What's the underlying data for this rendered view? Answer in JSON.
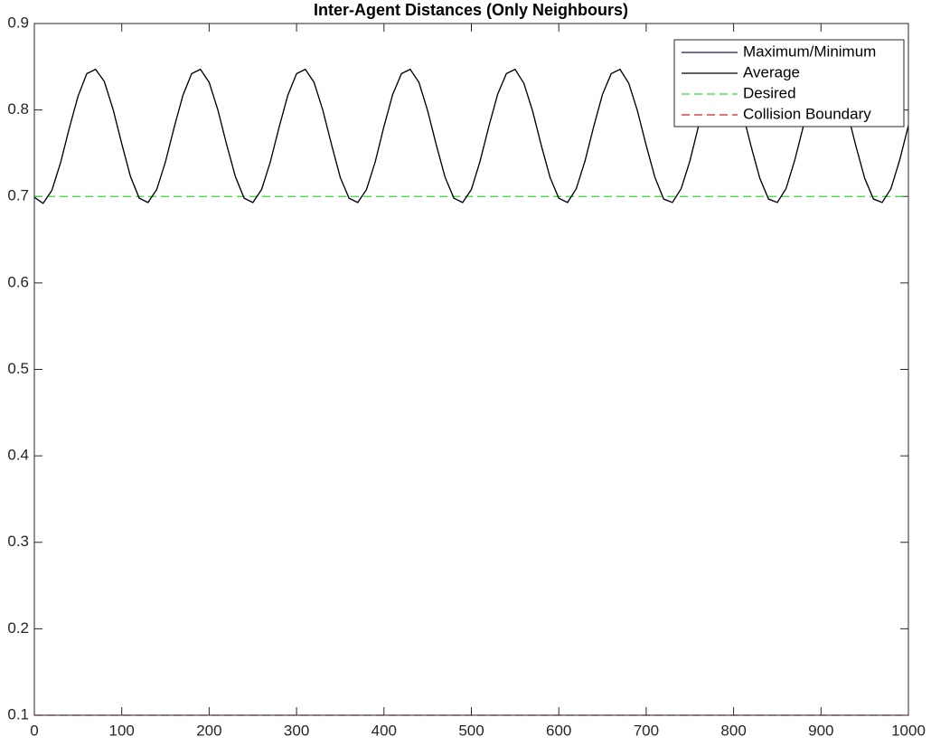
{
  "chart_data": {
    "type": "line",
    "title": "Inter-Agent Distances (Only Neighbours)",
    "x": [
      0,
      10,
      20,
      30,
      40,
      50,
      60,
      70,
      80,
      90,
      100,
      110,
      120,
      130,
      140,
      150,
      160,
      170,
      180,
      190,
      200,
      210,
      220,
      230,
      240,
      250,
      260,
      270,
      280,
      290,
      300,
      310,
      320,
      330,
      340,
      350,
      360,
      370,
      380,
      390,
      400,
      410,
      420,
      430,
      440,
      450,
      460,
      470,
      480,
      490,
      500,
      510,
      520,
      530,
      540,
      550,
      560,
      570,
      580,
      590,
      600,
      610,
      620,
      630,
      640,
      650,
      660,
      670,
      680,
      690,
      700,
      710,
      720,
      730,
      740,
      750,
      760,
      770,
      780,
      790,
      800,
      810,
      820,
      830,
      840,
      850,
      860,
      870,
      880,
      890,
      900,
      910,
      920,
      930,
      940,
      950,
      960,
      970,
      980,
      990,
      1000
    ],
    "series": [
      {
        "name": "Maximum/Minimum",
        "color": "#1a1a6e",
        "values": [
          0.699,
          0.692,
          0.707,
          0.739,
          0.779,
          0.816,
          0.842,
          0.847,
          0.833,
          0.801,
          0.761,
          0.723,
          0.698,
          0.693,
          0.708,
          0.74,
          0.78,
          0.817,
          0.842,
          0.847,
          0.832,
          0.8,
          0.76,
          0.723,
          0.698,
          0.693,
          0.708,
          0.74,
          0.78,
          0.817,
          0.842,
          0.847,
          0.832,
          0.8,
          0.76,
          0.722,
          0.698,
          0.693,
          0.708,
          0.74,
          0.781,
          0.818,
          0.842,
          0.847,
          0.832,
          0.799,
          0.759,
          0.722,
          0.698,
          0.693,
          0.708,
          0.741,
          0.781,
          0.818,
          0.842,
          0.847,
          0.831,
          0.799,
          0.759,
          0.722,
          0.698,
          0.693,
          0.709,
          0.741,
          0.781,
          0.818,
          0.842,
          0.847,
          0.831,
          0.799,
          0.759,
          0.722,
          0.697,
          0.693,
          0.709,
          0.741,
          0.782,
          0.819,
          0.843,
          0.847,
          0.831,
          0.798,
          0.758,
          0.721,
          0.697,
          0.693,
          0.709,
          0.742,
          0.782,
          0.819,
          0.843,
          0.847,
          0.831,
          0.798,
          0.758,
          0.721,
          0.697,
          0.693,
          0.709,
          0.742,
          0.782
        ]
      },
      {
        "name": "Average",
        "color": "#000000",
        "values": [
          0.699,
          0.692,
          0.707,
          0.739,
          0.779,
          0.816,
          0.842,
          0.847,
          0.833,
          0.801,
          0.761,
          0.723,
          0.698,
          0.693,
          0.708,
          0.74,
          0.78,
          0.817,
          0.842,
          0.847,
          0.832,
          0.8,
          0.76,
          0.723,
          0.698,
          0.693,
          0.708,
          0.74,
          0.78,
          0.817,
          0.842,
          0.847,
          0.832,
          0.8,
          0.76,
          0.722,
          0.698,
          0.693,
          0.708,
          0.74,
          0.781,
          0.818,
          0.842,
          0.847,
          0.832,
          0.799,
          0.759,
          0.722,
          0.698,
          0.693,
          0.708,
          0.741,
          0.781,
          0.818,
          0.842,
          0.847,
          0.831,
          0.799,
          0.759,
          0.722,
          0.698,
          0.693,
          0.709,
          0.741,
          0.781,
          0.818,
          0.842,
          0.847,
          0.831,
          0.799,
          0.759,
          0.722,
          0.697,
          0.693,
          0.709,
          0.741,
          0.782,
          0.819,
          0.843,
          0.847,
          0.831,
          0.798,
          0.758,
          0.721,
          0.697,
          0.693,
          0.709,
          0.742,
          0.782,
          0.819,
          0.843,
          0.847,
          0.831,
          0.798,
          0.758,
          0.721,
          0.697,
          0.693,
          0.709,
          0.742,
          0.782
        ]
      }
    ],
    "reference_lines": [
      {
        "name": "Desired",
        "color": "#33dd33",
        "value": 0.7
      },
      {
        "name": "Collision Boundary",
        "color": "#cc2222",
        "value": 0.1
      }
    ],
    "xlim": [
      0,
      1000
    ],
    "xticks": [
      0,
      100,
      200,
      300,
      400,
      500,
      600,
      700,
      800,
      900,
      1000
    ],
    "ylim": [
      0.1,
      0.9
    ],
    "yticks": [
      0.1,
      0.2,
      0.3,
      0.4,
      0.5,
      0.6,
      0.7,
      0.8,
      0.9
    ],
    "legend": "upper right"
  }
}
